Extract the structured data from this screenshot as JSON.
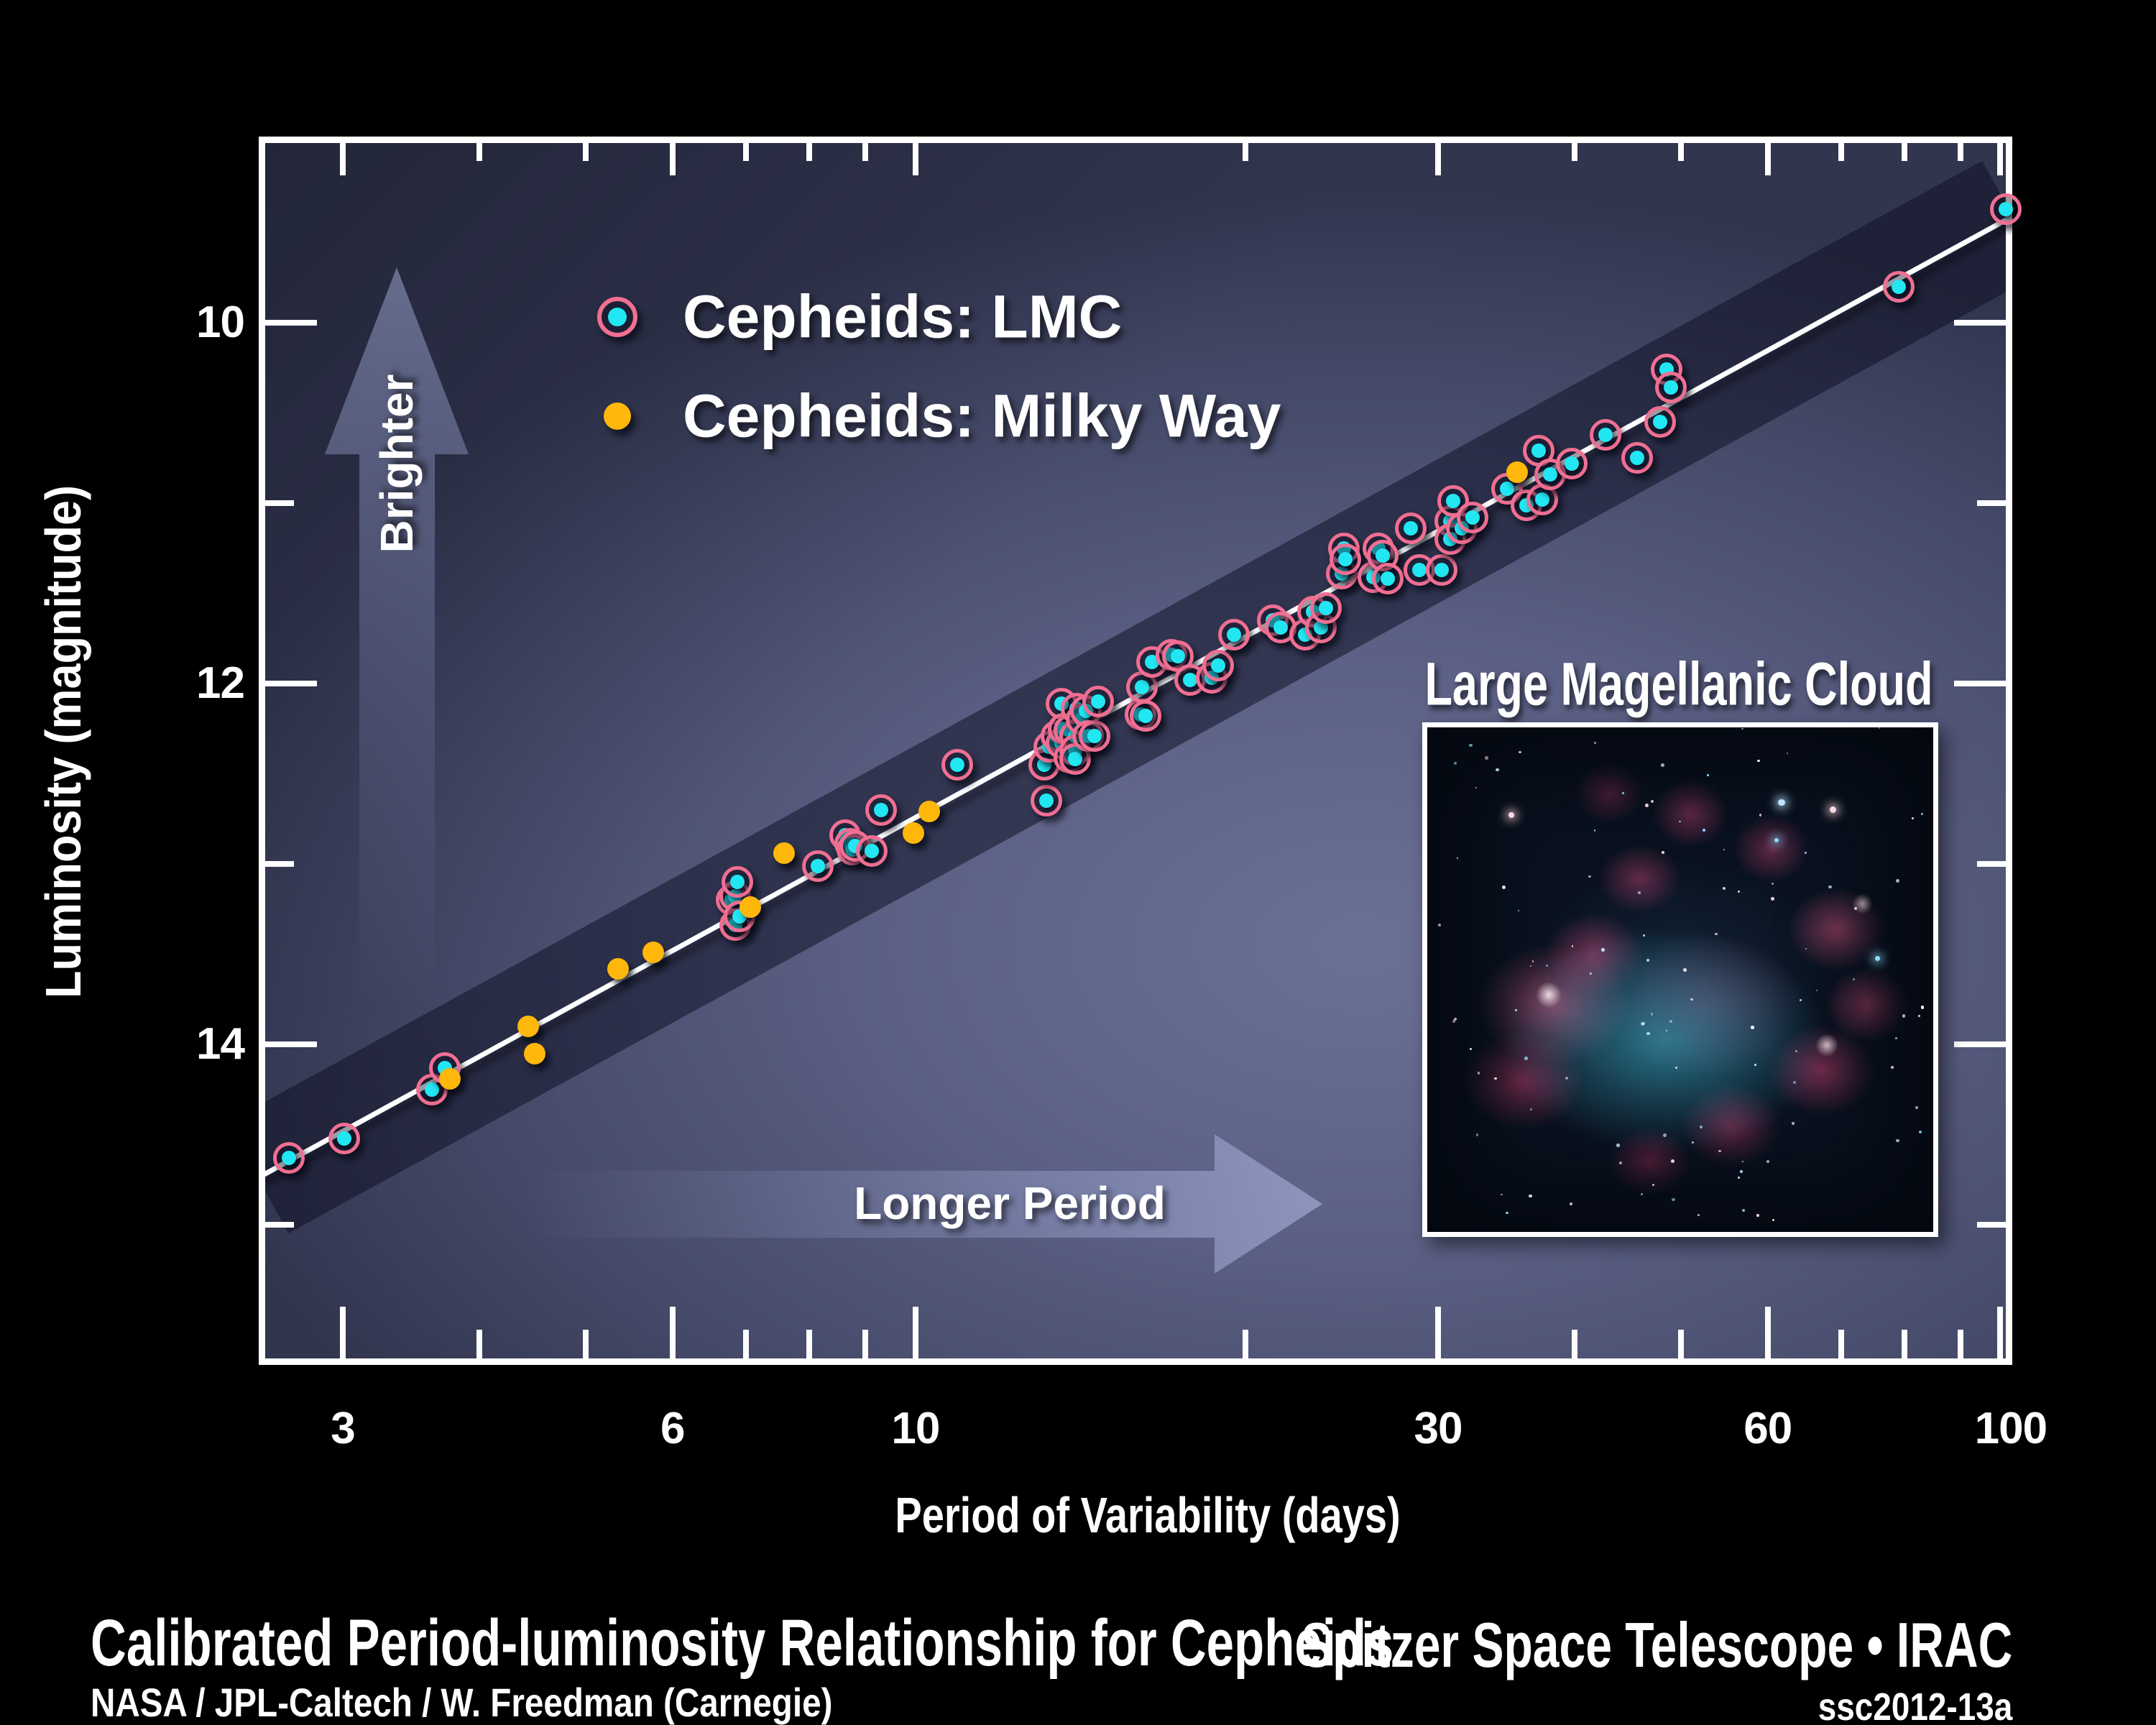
{
  "footer": {
    "credit": "NASA / JPL-Caltech / W. Freedman (Carnegie)",
    "mission": "Spitzer Space Telescope • IRAC",
    "release_id": "ssc2012-13a"
  },
  "inset": {
    "title": "Large Magellanic Cloud"
  },
  "colors": {
    "background": "#000000",
    "plot_center": "#6b7096",
    "plot_edge": "#31354e",
    "lmc_dot": "#22e6f2",
    "lmc_ring": "#f06f92",
    "milky_way_dot": "#ffb70c",
    "fit_line": "#ffffff",
    "band": "rgba(13,16,34,0.52)",
    "arrow": "#9aa3cd",
    "text": "#ffffff"
  },
  "chart_data": {
    "type": "scatter",
    "title": "Calibrated Period-luminosity Relationship for Cepheids",
    "legend_position": "top-left-inside",
    "x_axis": {
      "label": "Period of Variability (days)",
      "scale": "log",
      "range_days": [
        2.5,
        100.4
      ],
      "labeled_ticks": [
        3,
        6,
        10,
        30,
        60,
        100
      ],
      "minor_ticks": [
        4,
        5,
        7,
        8,
        9,
        20,
        40,
        50,
        70,
        80,
        90
      ],
      "arrow_annotation": "Longer Period"
    },
    "y_axis": {
      "label": "Luminosity (magnitude)",
      "inverted": true,
      "range_mag": [
        8.97,
        15.78
      ],
      "labeled_ticks": [
        10,
        12,
        14
      ],
      "minor_ticks": [
        11,
        13,
        15
      ],
      "arrow_annotation": "Brighter"
    },
    "annotations": {
      "brighter": "Brighter",
      "longer_period": "Longer Period"
    },
    "fit_line": {
      "p1": {
        "p": 2.51,
        "mag": 14.74
      },
      "p2": {
        "p": 100.4,
        "mag": 9.41
      },
      "band_halfwidth_mag": 0.4
    },
    "series": [
      {
        "name": "Cepheids: LMC",
        "marker": "lmc",
        "points_p_mag": [
          [
            2.68,
            14.63
          ],
          [
            3.01,
            14.52
          ],
          [
            3.62,
            14.25
          ],
          [
            3.72,
            14.13
          ],
          [
            6.79,
            13.2
          ],
          [
            6.85,
            13.18
          ],
          [
            6.85,
            13.34
          ],
          [
            6.88,
            13.1
          ],
          [
            6.91,
            13.29
          ],
          [
            8.15,
            13.01
          ],
          [
            8.62,
            12.84
          ],
          [
            8.72,
            12.89
          ],
          [
            8.76,
            12.92
          ],
          [
            8.81,
            12.9
          ],
          [
            9.12,
            12.93
          ],
          [
            9.3,
            12.7
          ],
          [
            10.92,
            12.45
          ],
          [
            13.16,
            12.65
          ],
          [
            13.1,
            12.45
          ],
          [
            13.25,
            12.35
          ],
          [
            13.45,
            12.29
          ],
          [
            13.6,
            12.11
          ],
          [
            13.6,
            12.33
          ],
          [
            13.66,
            12.25
          ],
          [
            13.81,
            12.41
          ],
          [
            13.83,
            12.26
          ],
          [
            13.98,
            12.29
          ],
          [
            13.98,
            12.37
          ],
          [
            13.98,
            12.42
          ],
          [
            14.04,
            12.14
          ],
          [
            14.19,
            12.2
          ],
          [
            14.3,
            12.15
          ],
          [
            14.37,
            12.29
          ],
          [
            14.58,
            12.29
          ],
          [
            14.67,
            12.1
          ],
          [
            16.04,
            12.17
          ],
          [
            16.09,
            12.02
          ],
          [
            16.23,
            12.18
          ],
          [
            16.45,
            11.88
          ],
          [
            17.13,
            11.84
          ],
          [
            17.37,
            11.85
          ],
          [
            17.8,
            11.98
          ],
          [
            18.64,
            11.97
          ],
          [
            18.9,
            11.9
          ],
          [
            19.52,
            11.73
          ],
          [
            21.19,
            11.65
          ],
          [
            21.55,
            11.69
          ],
          [
            22.67,
            11.73
          ],
          [
            23.08,
            11.6
          ],
          [
            23.46,
            11.69
          ],
          [
            23.71,
            11.58
          ],
          [
            24.52,
            11.39
          ],
          [
            24.63,
            11.25
          ],
          [
            24.7,
            11.31
          ],
          [
            26.18,
            11.41
          ],
          [
            26.45,
            11.25
          ],
          [
            26.69,
            11.29
          ],
          [
            26.97,
            11.42
          ],
          [
            28.33,
            11.14
          ],
          [
            28.86,
            11.37
          ],
          [
            30.23,
            11.37
          ],
          [
            30.78,
            11.1
          ],
          [
            30.78,
            11.2
          ],
          [
            30.96,
            10.99
          ],
          [
            31.52,
            11.14
          ],
          [
            32.24,
            11.08
          ],
          [
            34.68,
            10.92
          ],
          [
            36.1,
            11.01
          ],
          [
            37.07,
            10.71
          ],
          [
            37.35,
            10.98
          ],
          [
            37.97,
            10.84
          ],
          [
            39.71,
            10.78
          ],
          [
            42.67,
            10.62
          ],
          [
            45.6,
            10.75
          ],
          [
            47.84,
            10.55
          ],
          [
            48.49,
            10.26
          ],
          [
            48.93,
            10.36
          ],
          [
            79.06,
            9.8
          ],
          [
            98.9,
            9.37
          ]
        ]
      },
      {
        "name": "Cepheids: Milky Way",
        "marker": "mw",
        "points_p_mag": [
          [
            3.76,
            14.19
          ],
          [
            4.43,
            13.9
          ],
          [
            4.49,
            14.05
          ],
          [
            5.35,
            13.58
          ],
          [
            5.76,
            13.49
          ],
          [
            7.07,
            13.24
          ],
          [
            7.59,
            12.94
          ],
          [
            9.96,
            12.83
          ],
          [
            10.29,
            12.71
          ],
          [
            35.4,
            10.83
          ]
        ]
      }
    ]
  }
}
